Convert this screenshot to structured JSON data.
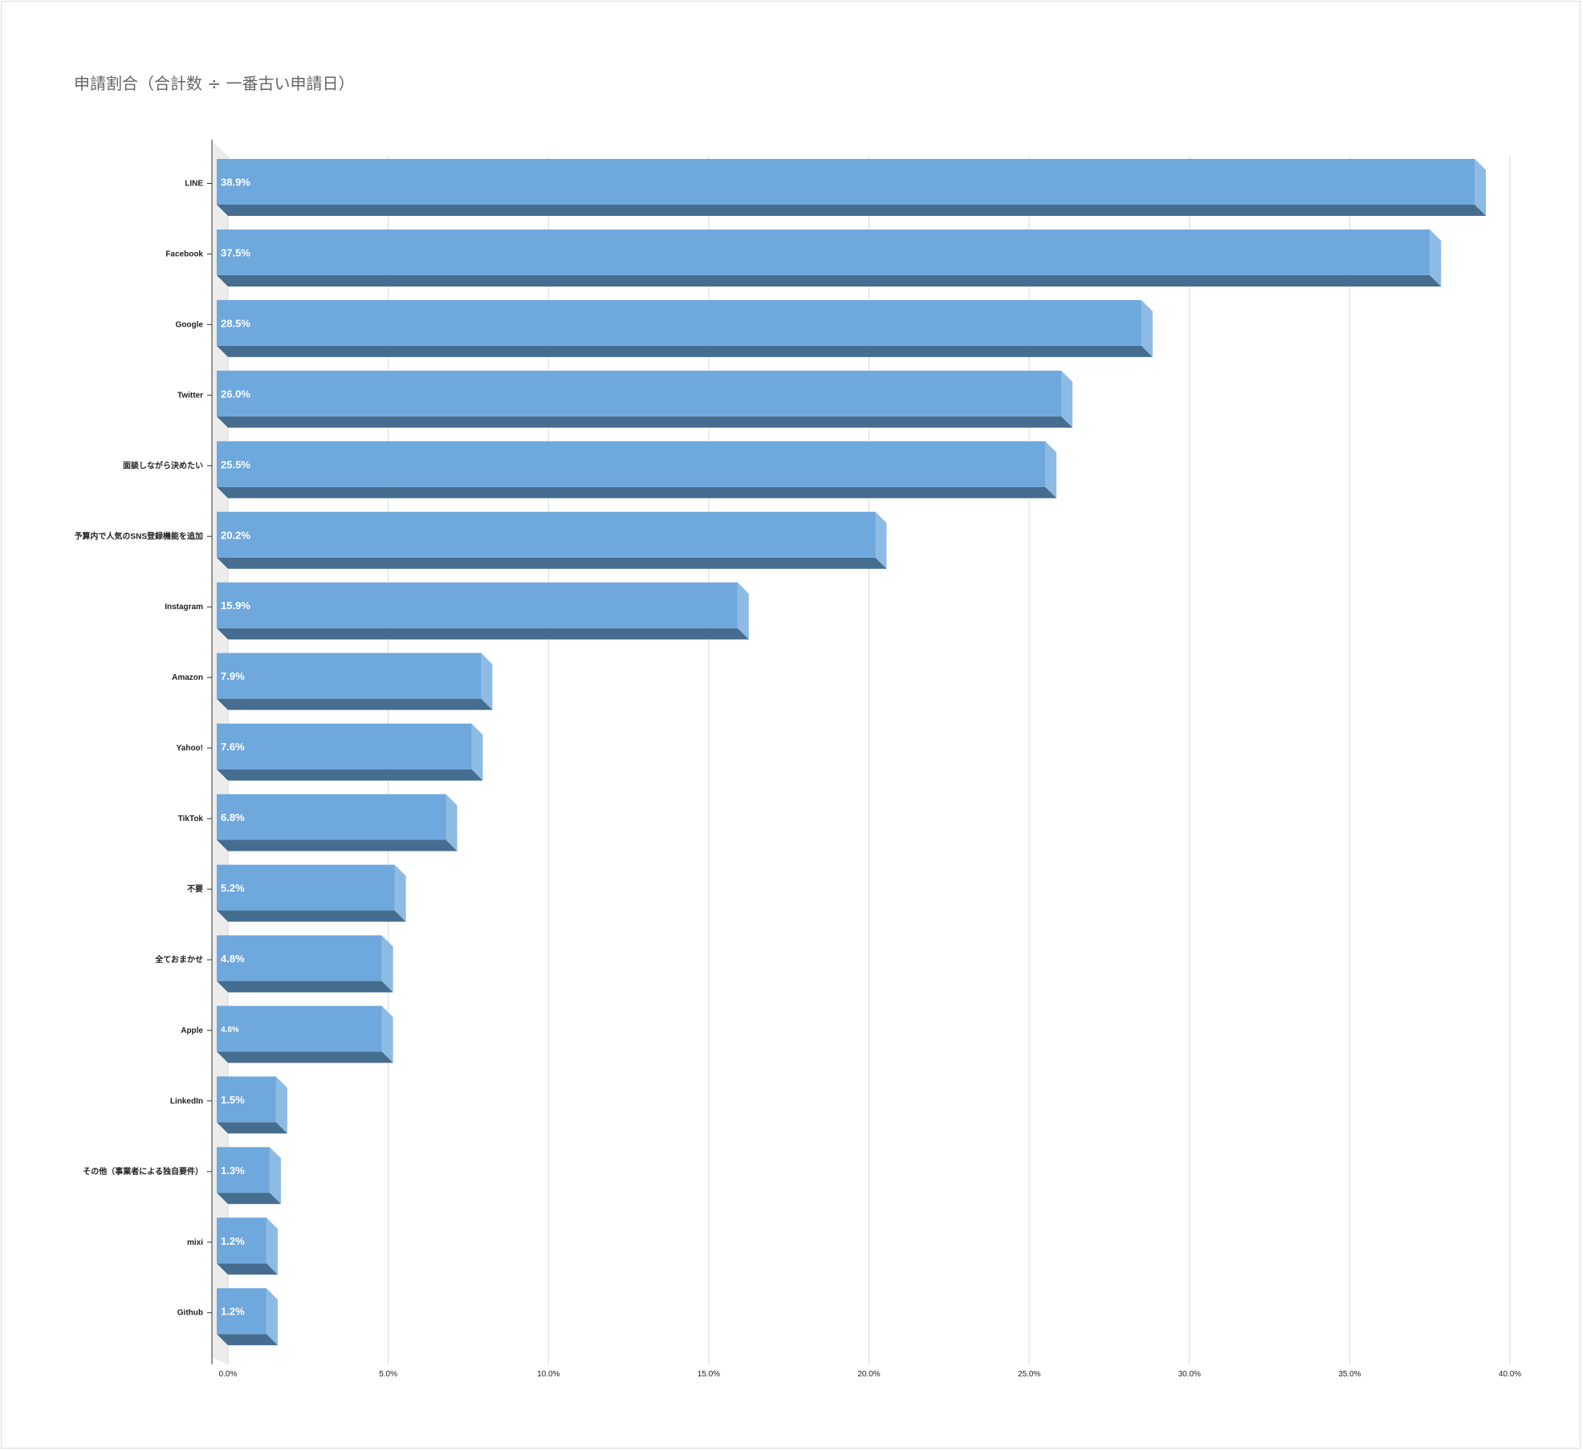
{
  "chart_data": {
    "type": "bar",
    "orientation": "horizontal",
    "title": "申請割合（合計数 ÷ 一番古い申請日）",
    "categories": [
      "LINE",
      "Facebook",
      "Google",
      "Twitter",
      "面談しながら決めたい",
      "予算内で人気のSNS登録機能を追加",
      "Instagram",
      "Amazon",
      "Yahoo!",
      "TikTok",
      "不要",
      "全ておまかせ",
      "Apple",
      "LinkedIn",
      "その他（事業者による独自要件）",
      "mixi",
      "Github"
    ],
    "values": [
      38.9,
      37.5,
      28.5,
      26.0,
      25.5,
      20.2,
      15.9,
      7.9,
      7.6,
      6.8,
      5.2,
      4.8,
      4.8,
      1.5,
      1.3,
      1.2,
      1.2
    ],
    "data_labels": [
      "38.9%",
      "37.5%",
      "28.5%",
      "26.0%",
      "25.5%",
      "20.2%",
      "15.9%",
      "7.9%",
      "7.6%",
      "6.8%",
      "5.2%",
      "4.8%",
      "4.8%",
      "1.5%",
      "1.3%",
      "1.2%",
      "1.2%"
    ],
    "x_ticks": [
      "0.0%",
      "5.0%",
      "10.0%",
      "15.0%",
      "20.0%",
      "25.0%",
      "30.0%",
      "35.0%",
      "40.0%"
    ],
    "xlim": [
      0,
      40
    ],
    "grid": true,
    "legend": "none",
    "style": "3d",
    "colors": {
      "bar_front": "#6fa8dc",
      "bar_bottom": "#456d8f",
      "bar_side": "#8ebbe3",
      "grid": "#d9d9d9",
      "floor": "#ececec"
    }
  }
}
